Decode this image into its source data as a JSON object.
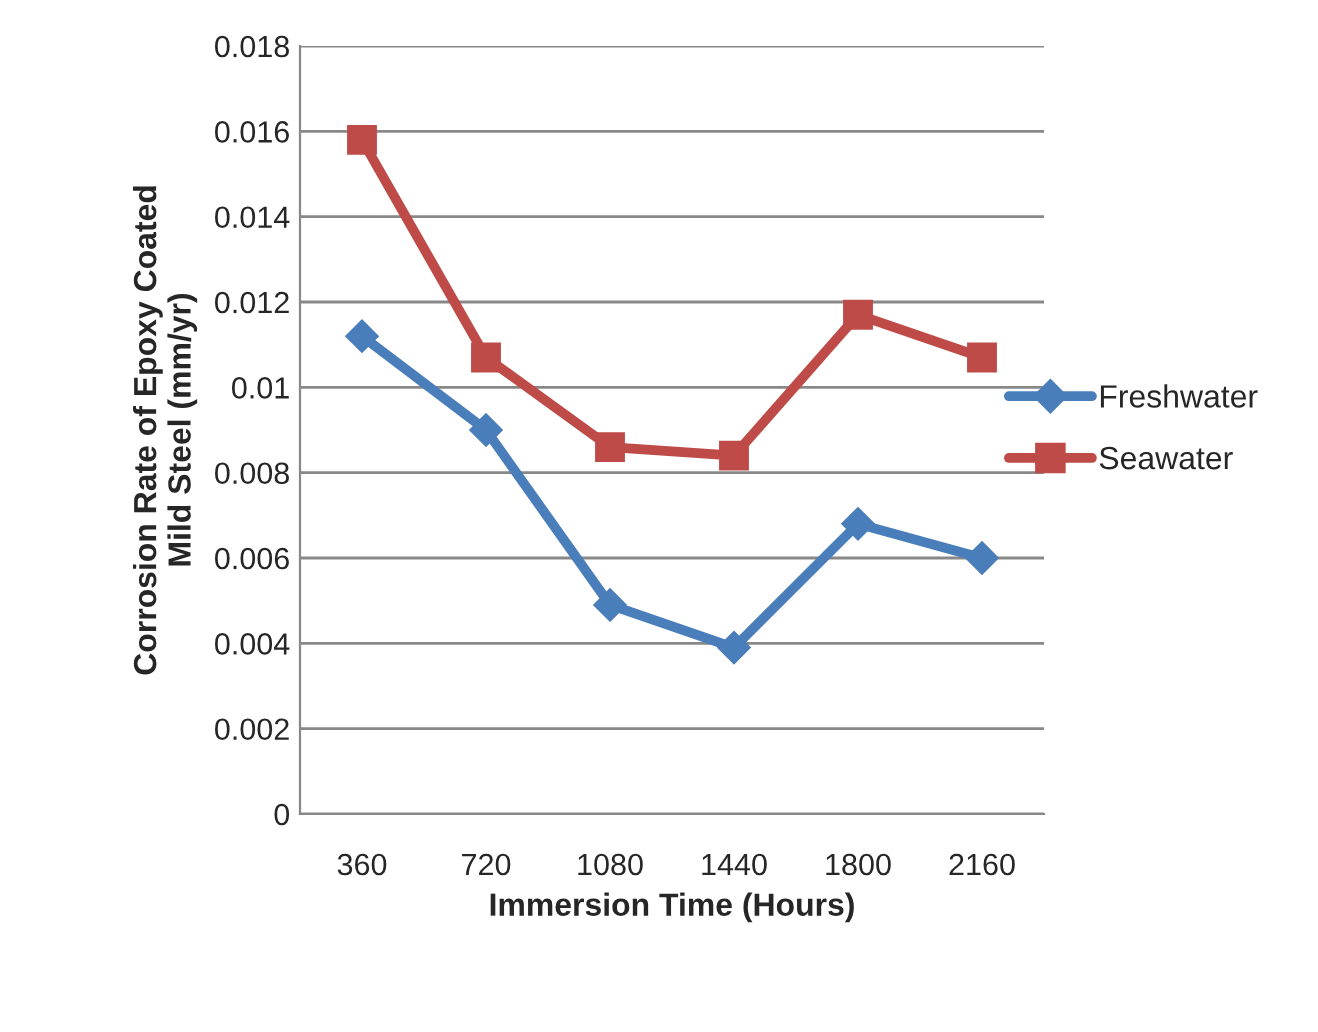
{
  "chart_data": {
    "type": "line",
    "xlabel": "Immersion Time (Hours)",
    "ylabel": "Corrosion Rate of Epoxy Coated\nMild Steel (mm/yr)",
    "categories": [
      "360",
      "720",
      "1080",
      "1440",
      "1800",
      "2160"
    ],
    "series": [
      {
        "name": "Freshwater",
        "color": "#4a7ebb",
        "marker": "diamond",
        "values": [
          0.0112,
          0.009,
          0.0049,
          0.0039,
          0.0068,
          0.006
        ]
      },
      {
        "name": "Seawater",
        "color": "#be4b48",
        "marker": "square",
        "values": [
          0.0158,
          0.0107,
          0.0086,
          0.0084,
          0.0117,
          0.0107
        ]
      }
    ],
    "ylim": [
      0,
      0.018
    ],
    "yticks": [
      0,
      0.002,
      0.004,
      0.006,
      0.008,
      0.01,
      0.012,
      0.014,
      0.016,
      0.018
    ],
    "grid": "y",
    "legend": "right",
    "line_style": "solid"
  }
}
